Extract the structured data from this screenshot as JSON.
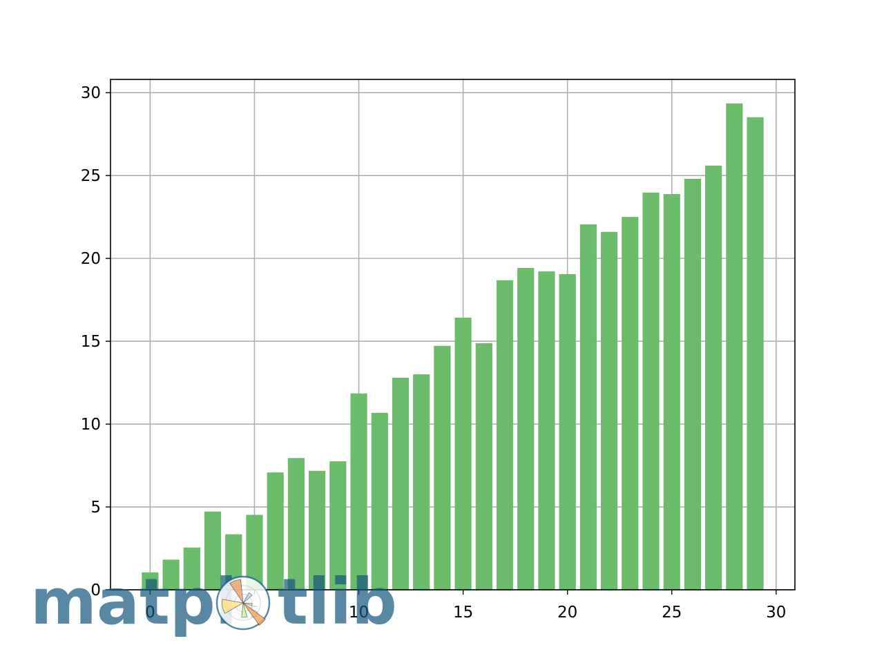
{
  "chart_data": {
    "type": "bar",
    "title": "",
    "xlabel": "",
    "ylabel": "",
    "x": [
      0,
      1,
      2,
      3,
      4,
      5,
      6,
      7,
      8,
      9,
      10,
      11,
      12,
      13,
      14,
      15,
      16,
      17,
      18,
      19,
      20,
      21,
      22,
      23,
      24,
      25,
      26,
      27,
      28,
      29
    ],
    "values": [
      1.05,
      1.82,
      2.55,
      4.72,
      3.35,
      4.52,
      7.08,
      7.95,
      7.18,
      7.75,
      11.85,
      10.68,
      12.8,
      13.0,
      14.72,
      16.42,
      14.88,
      18.68,
      19.42,
      19.22,
      19.05,
      22.05,
      21.6,
      22.5,
      23.97,
      23.88,
      24.8,
      25.6,
      29.35,
      28.52
    ],
    "xlim": [
      -1.9,
      30.9
    ],
    "ylim": [
      0,
      30.8
    ],
    "xticks": [
      0,
      5,
      10,
      15,
      20,
      25,
      30
    ],
    "yticks": [
      0,
      5,
      10,
      15,
      20,
      25,
      30
    ],
    "bar_color": "#6bbb6b",
    "grid": true,
    "grid_color": "#b0b0b0"
  },
  "watermark": {
    "text_left": "matpl",
    "text_right": "tlib",
    "text_color": "#11557c",
    "wedge_colors": [
      "#f4a460",
      "#ffe082",
      "#c5f59f",
      "#e8a36b",
      "#b5d6f0"
    ]
  }
}
